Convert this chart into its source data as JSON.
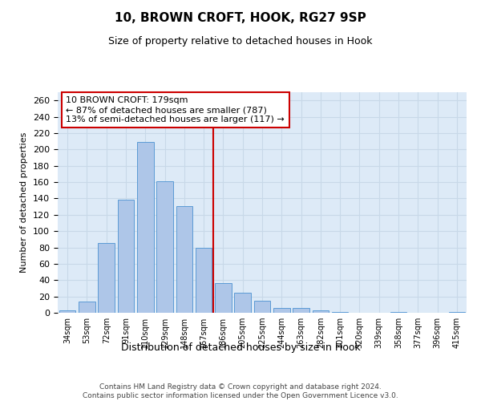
{
  "title": "10, BROWN CROFT, HOOK, RG27 9SP",
  "subtitle": "Size of property relative to detached houses in Hook",
  "xlabel": "Distribution of detached houses by size in Hook",
  "ylabel": "Number of detached properties",
  "footer_line1": "Contains HM Land Registry data © Crown copyright and database right 2024.",
  "footer_line2": "Contains public sector information licensed under the Open Government Licence v3.0.",
  "categories": [
    "34sqm",
    "53sqm",
    "72sqm",
    "91sqm",
    "110sqm",
    "129sqm",
    "148sqm",
    "167sqm",
    "186sqm",
    "205sqm",
    "225sqm",
    "244sqm",
    "263sqm",
    "282sqm",
    "301sqm",
    "320sqm",
    "339sqm",
    "358sqm",
    "377sqm",
    "396sqm",
    "415sqm"
  ],
  "values": [
    3,
    14,
    85,
    138,
    209,
    161,
    131,
    80,
    36,
    25,
    15,
    6,
    6,
    3,
    1,
    0,
    0,
    1,
    0,
    0,
    1
  ],
  "bar_color": "#aec6e8",
  "bar_edge_color": "#5b9bd5",
  "grid_color": "#c8d8e8",
  "background_color": "#ddeaf7",
  "red_line_x": 7.5,
  "red_line_color": "#cc0000",
  "annotation_text_line1": "10 BROWN CROFT: 179sqm",
  "annotation_text_line2": "← 87% of detached houses are smaller (787)",
  "annotation_text_line3": "13% of semi-detached houses are larger (117) →",
  "annotation_box_color": "#cc0000",
  "ylim": [
    0,
    270
  ],
  "yticks": [
    0,
    20,
    40,
    60,
    80,
    100,
    120,
    140,
    160,
    180,
    200,
    220,
    240,
    260
  ],
  "title_fontsize": 11,
  "subtitle_fontsize": 9,
  "ylabel_fontsize": 8,
  "xlabel_fontsize": 9,
  "tick_fontsize": 8,
  "annotation_fontsize": 8,
  "footer_fontsize": 6.5
}
